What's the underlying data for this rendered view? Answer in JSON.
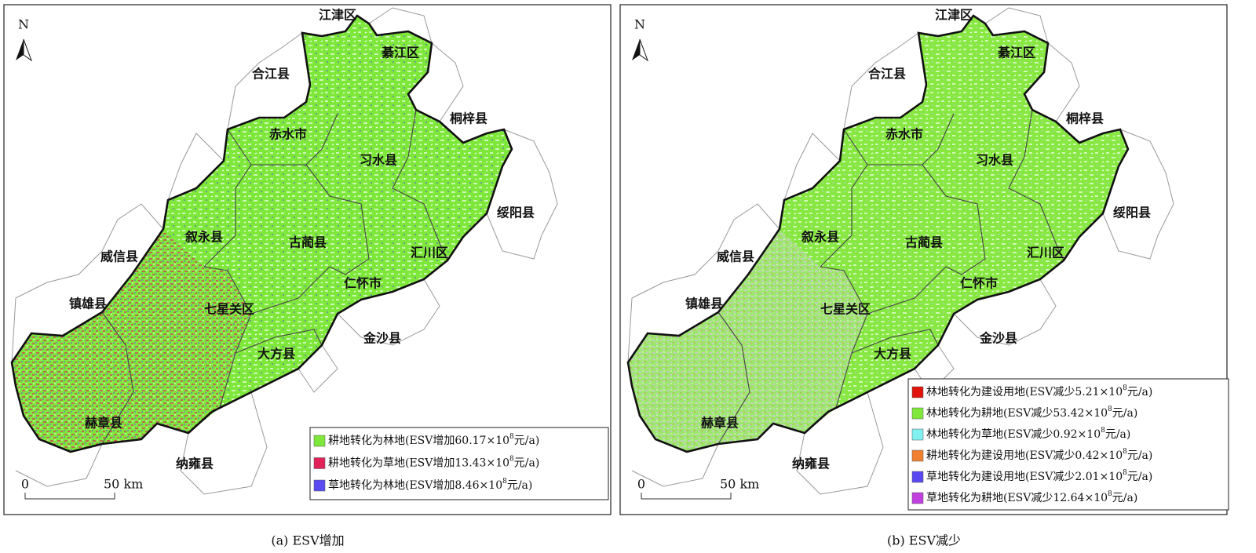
{
  "north": "N",
  "scale_zero": "0",
  "scale_label": "50 km",
  "places": [
    "江津区",
    "綦江区",
    "合江县",
    "桐梓县",
    "赤水市",
    "习水县",
    "绥阳县",
    "叙永县",
    "古蔺县",
    "汇川区",
    "威信县",
    "仁怀市",
    "镇雄县",
    "七星关区",
    "金沙县",
    "大方县",
    "赫章县",
    "纳雍县"
  ],
  "panels": [
    {
      "caption": "(a)  ESV增加",
      "legend": [
        {
          "color": "#7ee83a",
          "text": "耕地转化为林地(ESV增加60.17×10",
          "sup": "8",
          "tail": "元/a)"
        },
        {
          "color": "#e0245a",
          "text": "耕地转化为草地(ESV增加13.43×10",
          "sup": "8",
          "tail": "元/a)"
        },
        {
          "color": "#5a4cf0",
          "text": "草地转化为林地(ESV增加8.46×10",
          "sup": "8",
          "tail": "元/a)"
        }
      ]
    },
    {
      "caption": "(b)  ESV减少",
      "legend": [
        {
          "color": "#e0140c",
          "text": "林地转化为建设用地(ESV减少5.21×10",
          "sup": "8",
          "tail": "元/a)"
        },
        {
          "color": "#80e83a",
          "text": "林地转化为耕地(ESV减少53.42×10",
          "sup": "8",
          "tail": "元/a)"
        },
        {
          "color": "#80f0f0",
          "text": "林地转化为草地(ESV减少0.92×10",
          "sup": "8",
          "tail": "元/a)"
        },
        {
          "color": "#f08030",
          "text": "耕地转化为建设用地(ESV减少0.42×10",
          "sup": "8",
          "tail": "元/a)"
        },
        {
          "color": "#5848f0",
          "text": "草地转化为建设用地(ESV减少2.01×10",
          "sup": "8",
          "tail": "元/a)"
        },
        {
          "color": "#c040e0",
          "text": "草地转化为耕地(ESV减少12.64×10",
          "sup": "8",
          "tail": "元/a)"
        }
      ]
    }
  ]
}
